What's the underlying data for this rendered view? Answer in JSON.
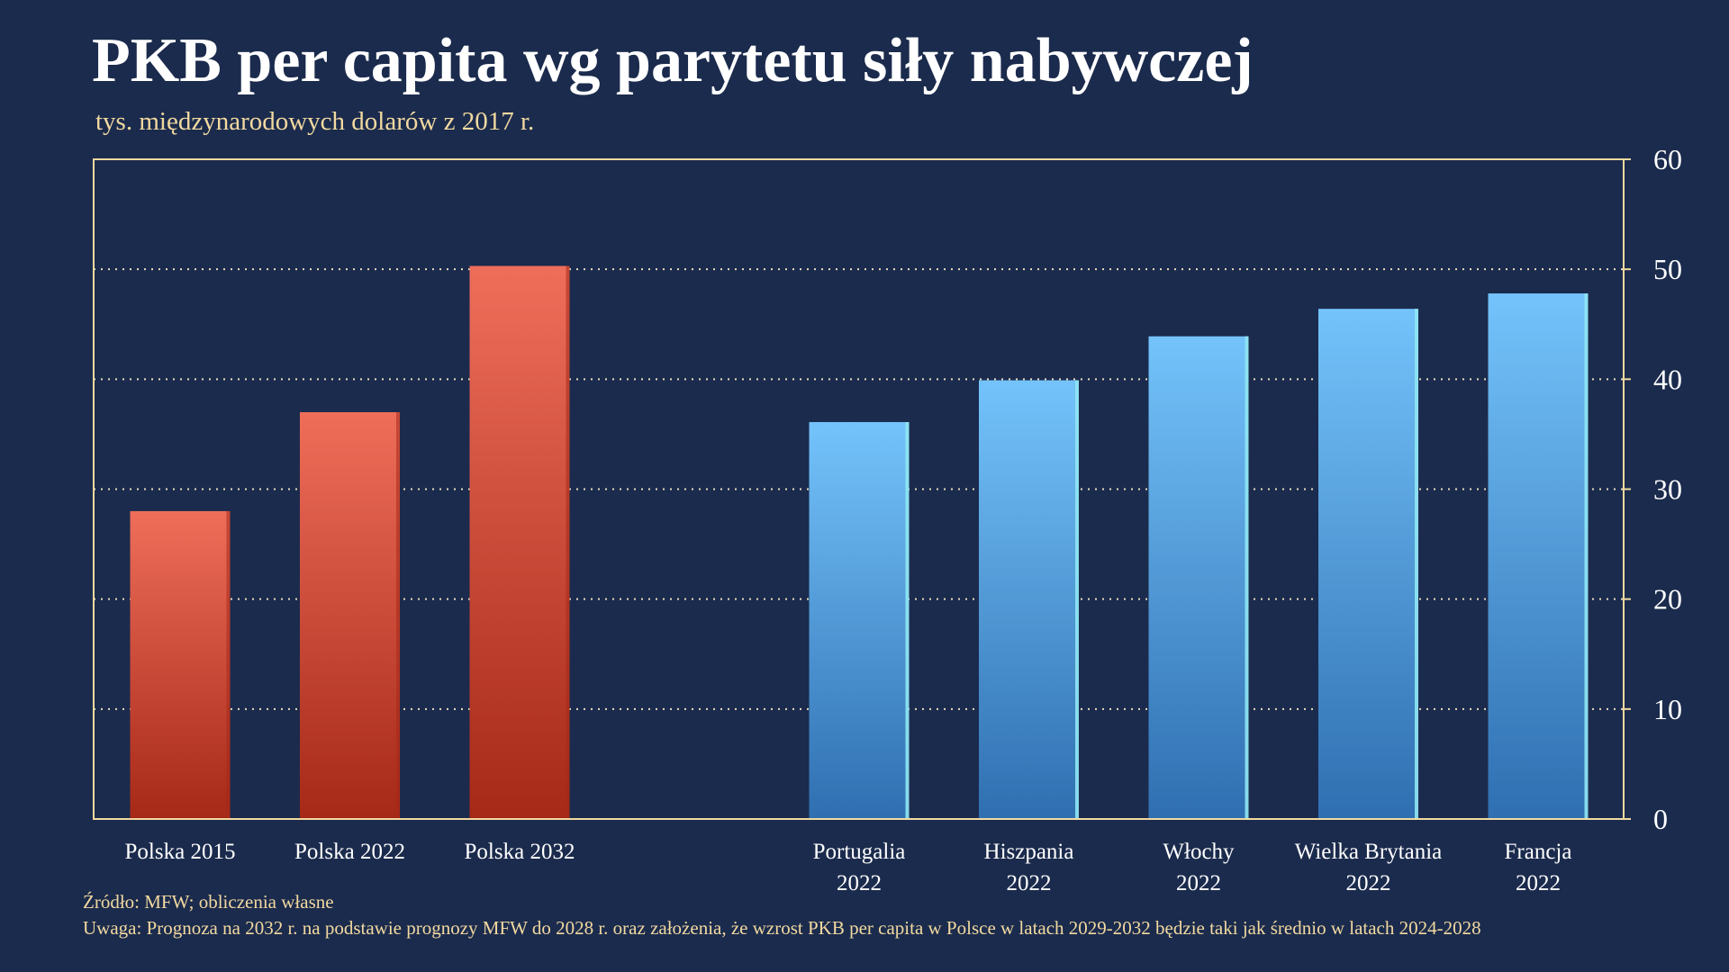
{
  "header": {
    "title": "PKB per capita wg parytetu siły nabywczej",
    "subtitle": "tys. międzynarodowych dolarów z 2017 r."
  },
  "footnotes": {
    "source": "Źródło: MFW; obliczenia własne",
    "note": "Uwaga: Prognoza na 2032 r. na podstawie prognozy MFW do 2028 r. oraz założenia, że wzrost PKB per capita w Polsce w latach 2029-2032 będzie taki jak średnio w latach 2024-2028"
  },
  "colors": {
    "background": "#1b2b4d",
    "frame": "#f2d9a0",
    "grid": "#e9dcc0",
    "poland_top": "#ee6e5a",
    "poland_bottom": "#a62817",
    "other_top": "#74c3fb",
    "other_bottom": "#2f6fb1",
    "other_edge": "#8fe6f2"
  },
  "chart_data": {
    "type": "bar",
    "title": "PKB per capita wg parytetu siły nabywczej",
    "subtitle": "tys. międzynarodowych dolarów z 2017 r.",
    "xlabel": "",
    "ylabel": "",
    "ylim": [
      0,
      60
    ],
    "yticks": [
      0,
      10,
      20,
      30,
      40,
      50,
      60
    ],
    "y_axis_position": "right",
    "grid": true,
    "legend": "none",
    "bars": [
      {
        "label_lines": [
          "Polska 2015"
        ],
        "value": 28,
        "group": "poland"
      },
      {
        "label_lines": [
          "Polska 2022"
        ],
        "value": 37,
        "group": "poland"
      },
      {
        "label_lines": [
          "Polska 2032"
        ],
        "value": 50.3,
        "group": "poland"
      },
      {
        "label_lines": [
          "Portugalia",
          "2022"
        ],
        "value": 36.1,
        "group": "other"
      },
      {
        "label_lines": [
          "Hiszpania",
          "2022"
        ],
        "value": 39.9,
        "group": "other"
      },
      {
        "label_lines": [
          "Włochy",
          "2022"
        ],
        "value": 43.9,
        "group": "other"
      },
      {
        "label_lines": [
          "Wielka Brytania",
          "2022"
        ],
        "value": 46.4,
        "group": "other"
      },
      {
        "label_lines": [
          "Francja",
          "2022"
        ],
        "value": 47.8,
        "group": "other"
      }
    ]
  }
}
